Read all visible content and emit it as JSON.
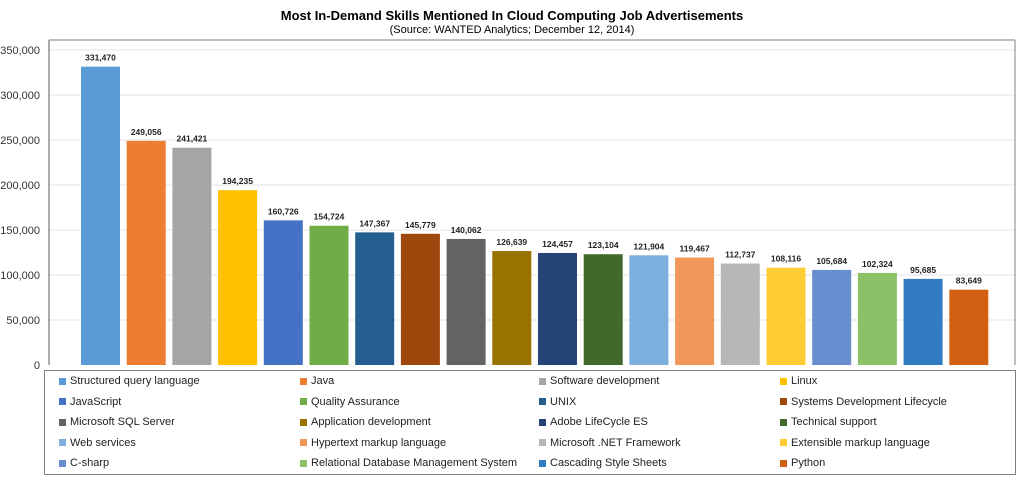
{
  "chart_data": {
    "type": "bar",
    "title": "Most In-Demand Skills Mentioned In Cloud Computing Job Advertisements",
    "subtitle": "(Source: WANTED Analytics; December 12, 2014)",
    "xlabel": "",
    "ylabel": "",
    "ylim": [
      0,
      350000
    ],
    "yticks": [
      0,
      50000,
      100000,
      150000,
      200000,
      250000,
      300000,
      350000
    ],
    "ytick_labels": [
      "0",
      "50,000",
      "100,000",
      "150,000",
      "200,000",
      "250,000",
      "300,000",
      "350,000"
    ],
    "grid": true,
    "legend_position": "bottom",
    "series": [
      {
        "name": "Structured query language",
        "value": 331470,
        "label": "331,470",
        "color": "#5b9bd5"
      },
      {
        "name": "Java",
        "value": 249056,
        "label": "249,056",
        "color": "#ed7d31"
      },
      {
        "name": "Software development",
        "value": 241421,
        "label": "241,421",
        "color": "#a5a5a5"
      },
      {
        "name": "Linux",
        "value": 194235,
        "label": "194,235",
        "color": "#ffc000"
      },
      {
        "name": "JavaScript",
        "value": 160726,
        "label": "160,726",
        "color": "#4472c4"
      },
      {
        "name": "Quality Assurance",
        "value": 154724,
        "label": "154,724",
        "color": "#70ad47"
      },
      {
        "name": "UNIX",
        "value": 147367,
        "label": "147,367",
        "color": "#255e91"
      },
      {
        "name": "Systems Development Lifecycle",
        "value": 145779,
        "label": "145,779",
        "color": "#9e480e"
      },
      {
        "name": "Microsoft SQL Server",
        "value": 140062,
        "label": "140,062",
        "color": "#636363"
      },
      {
        "name": "Application development",
        "value": 126639,
        "label": "126,639",
        "color": "#997300"
      },
      {
        "name": "Adobe LifeCycle ES",
        "value": 124457,
        "label": "124,457",
        "color": "#264478"
      },
      {
        "name": "Technical support",
        "value": 123104,
        "label": "123,104",
        "color": "#43682b"
      },
      {
        "name": "Web services",
        "value": 121904,
        "label": "121,904",
        "color": "#7cafdd"
      },
      {
        "name": "Hypertext markup language",
        "value": 119467,
        "label": "119,467",
        "color": "#f1975a"
      },
      {
        "name": "Microsoft .NET Framework",
        "value": 112737,
        "label": "112,737",
        "color": "#b7b7b7"
      },
      {
        "name": "Extensible markup language",
        "value": 108116,
        "label": "108,116",
        "color": "#ffcd33"
      },
      {
        "name": "C-sharp",
        "value": 105684,
        "label": "105,684",
        "color": "#698ed0"
      },
      {
        "name": "Relational Database Management System",
        "value": 102324,
        "label": "102,324",
        "color": "#8cc168"
      },
      {
        "name": "Cascading Style Sheets",
        "value": 95685,
        "label": "95,685",
        "color": "#327dc2"
      },
      {
        "name": "Python",
        "value": 83649,
        "label": "83,649",
        "color": "#d26012"
      }
    ]
  }
}
